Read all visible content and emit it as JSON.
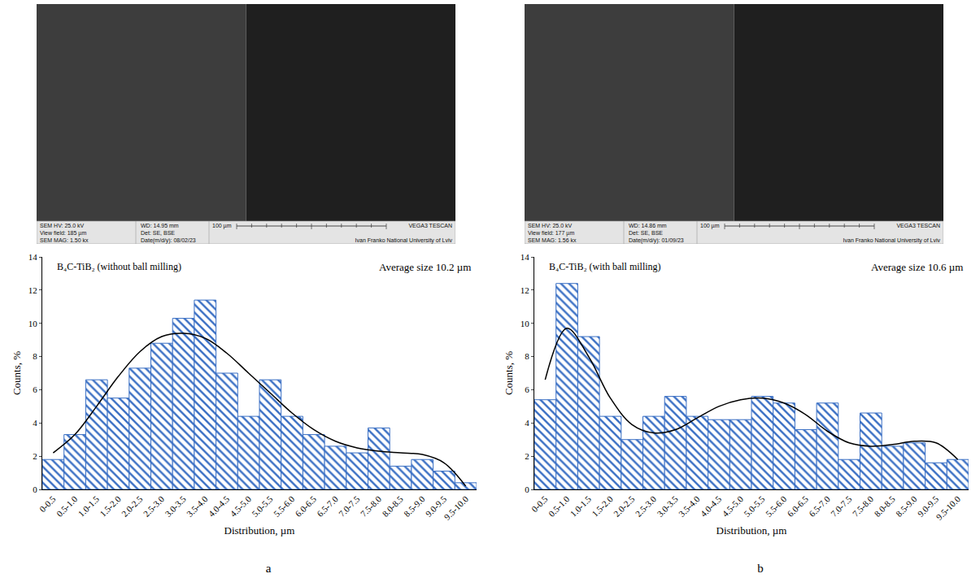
{
  "panel_labels": [
    "a",
    "b"
  ],
  "sem_images": [
    {
      "info_rows": [
        [
          "SEM HV: 25.0 kV",
          "View field: 185 µm",
          "SEM MAG: 1.50 kx"
        ],
        [
          "WD: 14.95 mm",
          "Det: SE, BSE",
          "Date(m/d/y): 08/02/23"
        ]
      ],
      "scale_bar": "100 µm",
      "instrument": "VEGA3 TESCAN",
      "institution": "Ivan Franko National University of Lviv"
    },
    {
      "info_rows": [
        [
          "SEM HV: 25.0 kV",
          "View field: 177 µm",
          "SEM MAG: 1.56 kx"
        ],
        [
          "WD: 14.86 mm",
          "Det: SE, BSE",
          "Date(m/d/y): 01/09/23"
        ]
      ],
      "scale_bar": "100 µm",
      "instrument": "VEGA3 TESCAN",
      "institution": "Ivan Franko National University of Lviv"
    }
  ],
  "chart_data": [
    {
      "type": "bar",
      "title": "B₄C-TiB₂ (without ball milling)",
      "annotations": [
        "Average size 10.2 µm"
      ],
      "x_label": "Distribution, µm",
      "y_label": "Counts, %",
      "categories": [
        "0-0.5",
        "0.5-1.0",
        "1.0-1.5",
        "1.5-2.0",
        "2.0-2.5",
        "2.5-3.0",
        "3.0-3.5",
        "3.5-4.0",
        "4.0-4.5",
        "4.5-5.0",
        "5.0-5.5",
        "5.5-6.0",
        "6.0-6.5",
        "6.5-7.0",
        "7.0-7.5",
        "7.5-8.0",
        "8.0-8.5",
        "8.5-9.0",
        "9.0-9.5",
        "9.5-10.0"
      ],
      "series": [
        {
          "type": "bar",
          "color": "#3a6fc4",
          "values": [
            1.8,
            3.3,
            6.6,
            5.5,
            7.3,
            8.8,
            10.3,
            11.4,
            7.0,
            4.4,
            6.6,
            4.4,
            3.3,
            2.6,
            2.2,
            3.7,
            1.4,
            1.8,
            1.1,
            0.4
          ]
        },
        {
          "type": "line",
          "color": "#000000",
          "line_style": "smooth",
          "values": [
            2.2,
            3.3,
            5.0,
            6.8,
            8.3,
            9.2,
            9.4,
            9.1,
            8.2,
            7.0,
            5.8,
            4.6,
            3.6,
            2.9,
            2.5,
            2.3,
            2.2,
            2.1,
            1.6,
            0.2
          ]
        }
      ],
      "ylim": [
        0,
        14
      ],
      "yticks": [
        0,
        2,
        4,
        6,
        8,
        10,
        12,
        14
      ],
      "grid": false
    },
    {
      "type": "bar",
      "title": "B₄C-TiB₂ (with ball milling)",
      "annotations": [
        "Average size 10.6 µm"
      ],
      "x_label": "Distribution, µm",
      "y_label": "Counts, %",
      "categories": [
        "0-0.5",
        "0.5-1.0",
        "1.0-1.5",
        "1.5-2.0",
        "2.0-2.5",
        "2.5-3.0",
        "3.0-3.5",
        "3.5-4.0",
        "4.0-4.5",
        "4.5-5.0",
        "5.0-5.5",
        "5.5-6.0",
        "6.0-6.5",
        "6.5-7.0",
        "7.0-7.5",
        "7.5-8.0",
        "8.0-8.5",
        "8.5-9.0",
        "9.0-9.5",
        "9.5-10.0"
      ],
      "series": [
        {
          "type": "bar",
          "color": "#3a6fc4",
          "values": [
            5.4,
            12.4,
            9.2,
            4.4,
            3.0,
            4.4,
            5.6,
            4.4,
            4.2,
            4.2,
            5.6,
            5.2,
            3.6,
            5.2,
            1.8,
            4.6,
            2.6,
            2.8,
            1.6,
            1.8
          ]
        },
        {
          "type": "line",
          "color": "#000000",
          "line_style": "smooth",
          "values": [
            6.6,
            9.7,
            8.0,
            5.5,
            3.9,
            3.4,
            3.6,
            4.3,
            5.0,
            5.4,
            5.5,
            5.2,
            4.5,
            3.5,
            2.8,
            2.6,
            2.7,
            2.9,
            2.8,
            1.8
          ]
        }
      ],
      "ylim": [
        0,
        14
      ],
      "yticks": [
        0,
        2,
        4,
        6,
        8,
        10,
        12,
        14
      ],
      "grid": false
    }
  ]
}
